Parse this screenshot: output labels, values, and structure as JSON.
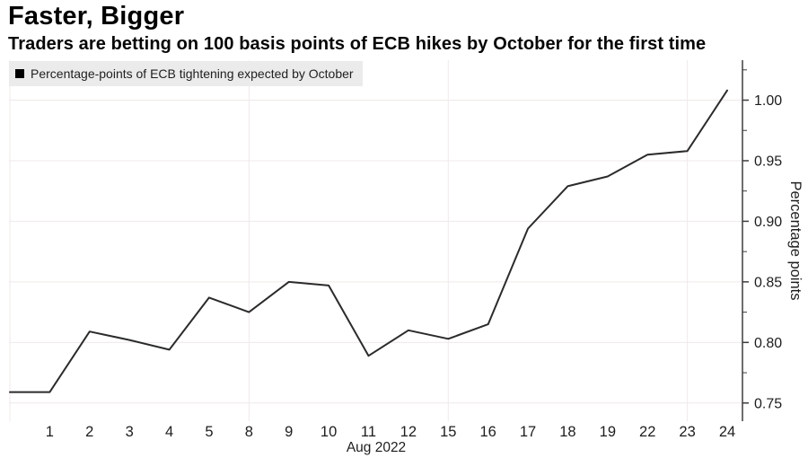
{
  "header": {
    "title": "Faster, Bigger",
    "subtitle": "Traders are betting on 100 basis points of ECB hikes by October for the first time"
  },
  "legend": {
    "label": "Percentage-points of ECB tightening expected by October",
    "marker_color": "#000000",
    "background_color": "#ebebeb"
  },
  "chart_data": {
    "type": "line",
    "title": "Faster, Bigger",
    "subtitle": "Traders are betting on 100 basis points of ECB hikes by October for the first time",
    "series_name": "Percentage-points of ECB tightening expected by October",
    "x_labels": [
      "",
      "1",
      "2",
      "3",
      "4",
      "5",
      "8",
      "9",
      "10",
      "11",
      "12",
      "15",
      "16",
      "17",
      "18",
      "19",
      "22",
      "23",
      "24"
    ],
    "values": [
      0.759,
      0.759,
      0.809,
      0.802,
      0.794,
      0.837,
      0.825,
      0.85,
      0.847,
      0.789,
      0.81,
      0.803,
      0.815,
      0.894,
      0.929,
      0.937,
      0.955,
      0.958,
      1.008
    ],
    "x_axis_title": "Aug 2022",
    "y_axis_title": "Percentage points",
    "y_major_ticks": [
      0.75,
      0.8,
      0.85,
      0.9,
      0.95,
      1.0
    ],
    "y_major_labels": [
      "0.75",
      "0.80",
      "0.85",
      "0.90",
      "0.95",
      "1.00"
    ],
    "y_minor_ticks": [
      0.775,
      0.825,
      0.875,
      0.925,
      0.975,
      1.025
    ],
    "ylim": [
      0.735,
      1.033
    ],
    "vertical_gridline_indices": [
      0,
      6,
      11,
      17
    ],
    "grid": true,
    "legend_position": "top-left",
    "y_axis_side": "right",
    "colors": {
      "line": "#2b2b2b",
      "grid": "#f0e9e9",
      "axis": "#3d3d3d",
      "tick_text": "#1d1d1d"
    }
  }
}
